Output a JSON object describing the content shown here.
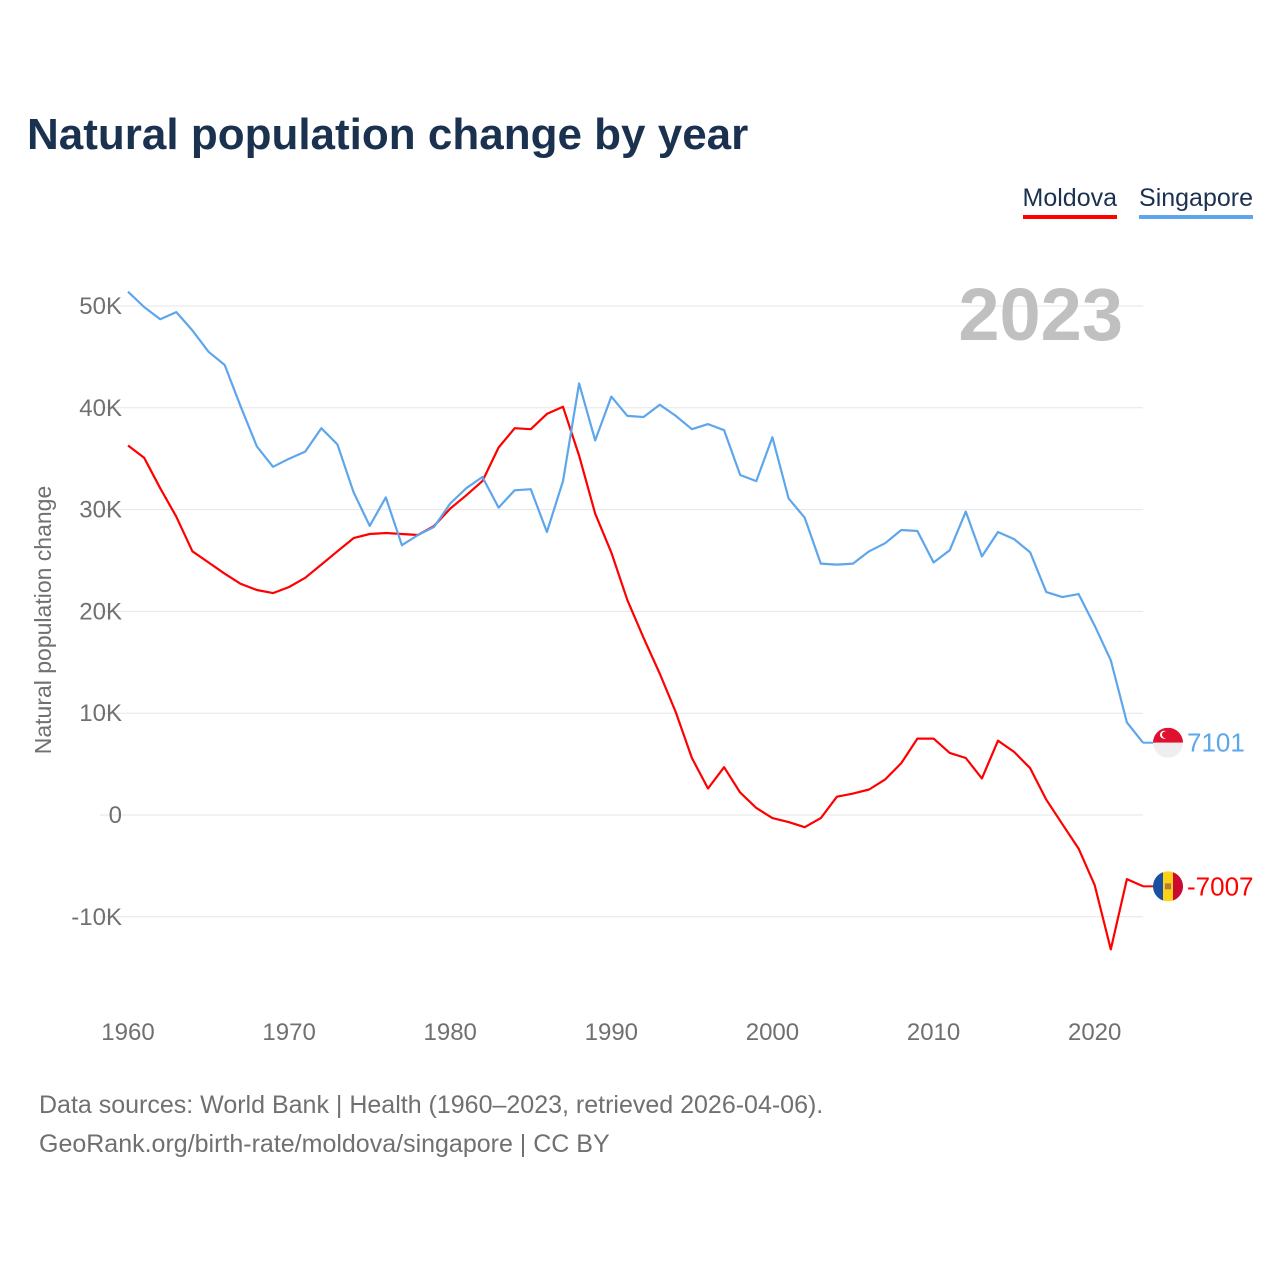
{
  "chart_data": {
    "type": "line",
    "title": "Natural population change by year",
    "ylabel": "Natural population change",
    "xlabel": "",
    "year_badge": "2023",
    "x": [
      1960,
      1961,
      1962,
      1963,
      1964,
      1965,
      1966,
      1967,
      1968,
      1969,
      1970,
      1971,
      1972,
      1973,
      1974,
      1975,
      1976,
      1977,
      1978,
      1979,
      1980,
      1981,
      1982,
      1983,
      1984,
      1985,
      1986,
      1987,
      1988,
      1989,
      1990,
      1991,
      1992,
      1993,
      1994,
      1995,
      1996,
      1997,
      1998,
      1999,
      2000,
      2001,
      2002,
      2003,
      2004,
      2005,
      2006,
      2007,
      2008,
      2009,
      2010,
      2011,
      2012,
      2013,
      2014,
      2015,
      2016,
      2017,
      2018,
      2019,
      2020,
      2021,
      2022,
      2023
    ],
    "series": [
      {
        "name": "Moldova",
        "color": "#ff0000",
        "end_label": "-7007",
        "values": [
          36300,
          35100,
          32100,
          29300,
          25900,
          24800,
          23700,
          22700,
          22100,
          21800,
          22400,
          23300,
          24600,
          25900,
          27200,
          27600,
          27700,
          27600,
          27500,
          28400,
          30100,
          31400,
          32800,
          36100,
          38000,
          37900,
          39400,
          40100,
          35300,
          29600,
          25800,
          21100,
          17400,
          13900,
          10100,
          5600,
          2600,
          4700,
          2200,
          700,
          -300,
          -700,
          -1200,
          -300,
          1800,
          2100,
          2500,
          3500,
          5100,
          7500,
          7500,
          6100,
          5600,
          3600,
          7300,
          6200,
          4600,
          1500,
          -900,
          -3300,
          -6900,
          -13200,
          -6300,
          -7007
        ]
      },
      {
        "name": "Singapore",
        "color": "#5ea6ec",
        "end_label": "7101",
        "values": [
          51400,
          49900,
          48700,
          49400,
          47600,
          45500,
          44200,
          40100,
          36200,
          34200,
          35000,
          35700,
          38000,
          36400,
          31700,
          28400,
          31200,
          26500,
          27500,
          28300,
          30600,
          32100,
          33200,
          30200,
          31900,
          32000,
          27800,
          32800,
          42400,
          36800,
          41100,
          39200,
          39100,
          40300,
          39200,
          37900,
          38400,
          37800,
          33400,
          32800,
          37100,
          31100,
          29200,
          24700,
          24600,
          24700,
          25900,
          26700,
          28000,
          27900,
          24800,
          26000,
          29800,
          25400,
          27800,
          27100,
          25800,
          21900,
          21400,
          21700,
          18600,
          15200,
          9100,
          7101
        ]
      }
    ],
    "xticks": [
      "1960",
      "1970",
      "1980",
      "1990",
      "2000",
      "2010",
      "2020"
    ],
    "yticks": [
      {
        "v": 50000,
        "label": "50K"
      },
      {
        "v": 40000,
        "label": "40K"
      },
      {
        "v": 30000,
        "label": "30K"
      },
      {
        "v": 20000,
        "label": "20K"
      },
      {
        "v": 10000,
        "label": "10K"
      },
      {
        "v": 0,
        "label": "0"
      },
      {
        "v": -10000,
        "label": "-10K"
      }
    ],
    "xlim": [
      1960,
      2023
    ],
    "ylim": [
      -19600,
      55000
    ],
    "grid": true,
    "legend_position": "top-right"
  },
  "legend": [
    "Moldova",
    "Singapore"
  ],
  "footer": {
    "line1": "Data sources: World Bank | Health (1960–2023, retrieved 2026-04-06).",
    "line2": "GeoRank.org/birth-rate/moldova/singapore | CC BY"
  }
}
